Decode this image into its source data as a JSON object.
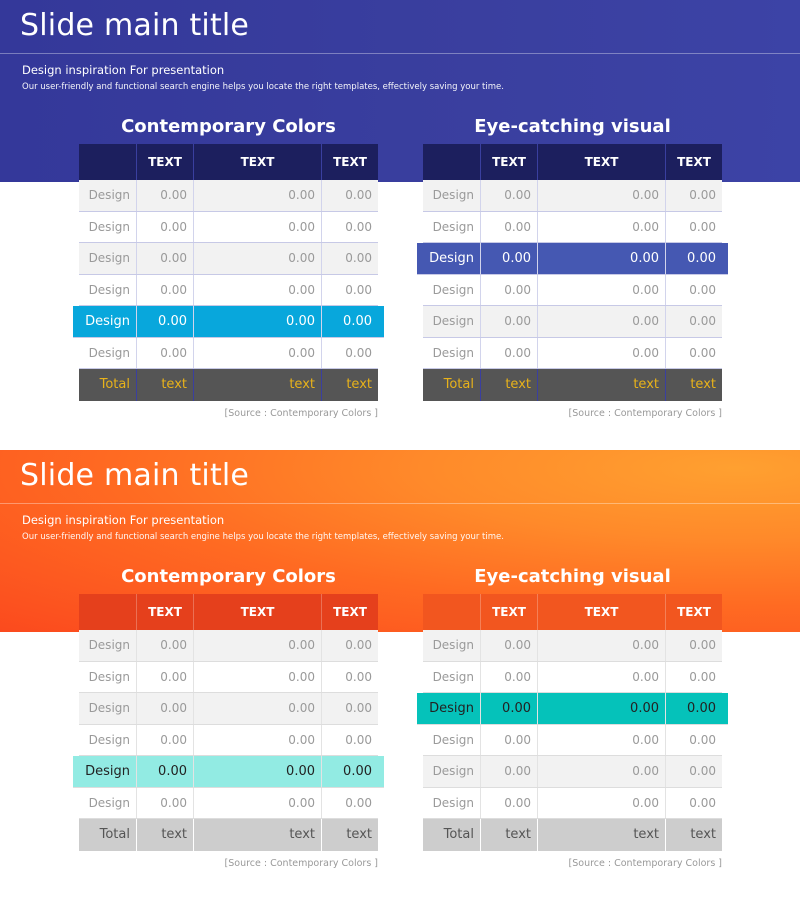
{
  "slides": [
    {
      "title": "Slide main title",
      "subtitle": "Design inspiration For presentation",
      "description": "Our user-friendly and functional search engine helps you locate the right templates, effectively saving your time.",
      "tables": [
        {
          "title": "Contemporary Colors",
          "headers": [
            "",
            "TEXT",
            "TEXT",
            "TEXT"
          ],
          "rows": [
            [
              "Design",
              "0.00",
              "0.00",
              "0.00"
            ],
            [
              "Design",
              "0.00",
              "0.00",
              "0.00"
            ],
            [
              "Design",
              "0.00",
              "0.00",
              "0.00"
            ],
            [
              "Design",
              "0.00",
              "0.00",
              "0.00"
            ],
            [
              "Design",
              "0.00",
              "0.00",
              "0.00"
            ],
            [
              "Design",
              "0.00",
              "0.00",
              "0.00"
            ]
          ],
          "total": [
            "Total",
            "text",
            "text",
            "text"
          ],
          "source": "[Source : Contemporary Colors ]"
        },
        {
          "title": "Eye-catching visual",
          "headers": [
            "",
            "TEXT",
            "TEXT",
            "TEXT"
          ],
          "rows": [
            [
              "Design",
              "0.00",
              "0.00",
              "0.00"
            ],
            [
              "Design",
              "0.00",
              "0.00",
              "0.00"
            ],
            [
              "Design",
              "0.00",
              "0.00",
              "0.00"
            ],
            [
              "Design",
              "0.00",
              "0.00",
              "0.00"
            ],
            [
              "Design",
              "0.00",
              "0.00",
              "0.00"
            ],
            [
              "Design",
              "0.00",
              "0.00",
              "0.00"
            ]
          ],
          "total": [
            "Total",
            "text",
            "text",
            "text"
          ],
          "source": "[Source : Contemporary Colors ]"
        }
      ]
    },
    {
      "title": "Slide main title",
      "subtitle": "Design inspiration For presentation",
      "description": "Our user-friendly and functional search engine helps you locate the right templates, effectively saving your time.",
      "tables": [
        {
          "title": "Contemporary Colors",
          "headers": [
            "",
            "TEXT",
            "TEXT",
            "TEXT"
          ],
          "rows": [
            [
              "Design",
              "0.00",
              "0.00",
              "0.00"
            ],
            [
              "Design",
              "0.00",
              "0.00",
              "0.00"
            ],
            [
              "Design",
              "0.00",
              "0.00",
              "0.00"
            ],
            [
              "Design",
              "0.00",
              "0.00",
              "0.00"
            ],
            [
              "Design",
              "0.00",
              "0.00",
              "0.00"
            ],
            [
              "Design",
              "0.00",
              "0.00",
              "0.00"
            ]
          ],
          "total": [
            "Total",
            "text",
            "text",
            "text"
          ],
          "source": "[Source : Contemporary Colors ]"
        },
        {
          "title": "Eye-catching visual",
          "headers": [
            "",
            "TEXT",
            "TEXT",
            "TEXT"
          ],
          "rows": [
            [
              "Design",
              "0.00",
              "0.00",
              "0.00"
            ],
            [
              "Design",
              "0.00",
              "0.00",
              "0.00"
            ],
            [
              "Design",
              "0.00",
              "0.00",
              "0.00"
            ],
            [
              "Design",
              "0.00",
              "0.00",
              "0.00"
            ],
            [
              "Design",
              "0.00",
              "0.00",
              "0.00"
            ],
            [
              "Design",
              "0.00",
              "0.00",
              "0.00"
            ]
          ],
          "total": [
            "Total",
            "text",
            "text",
            "text"
          ],
          "source": "[Source : Contemporary Colors ]"
        }
      ]
    }
  ]
}
